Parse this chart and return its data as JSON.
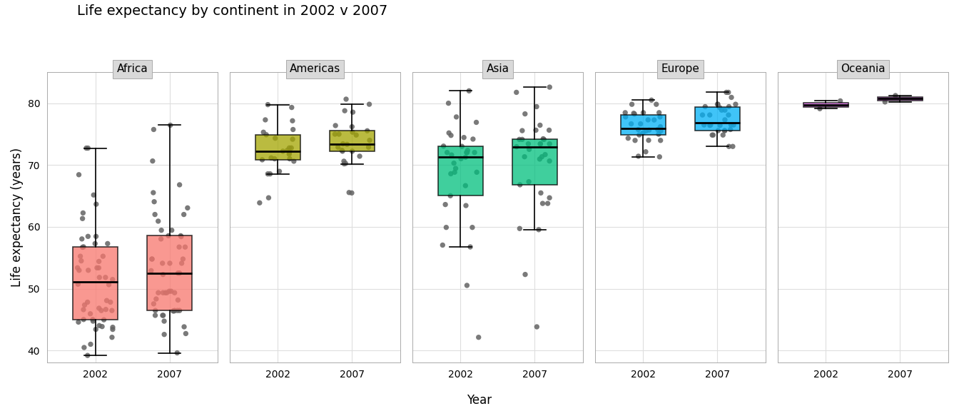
{
  "title": "Life expectancy by continent in 2002 v 2007",
  "xlabel": "Year",
  "ylabel": "Life expectancy (years)",
  "continents": [
    "Africa",
    "Americas",
    "Asia",
    "Europe",
    "Oceania"
  ],
  "years": [
    2002,
    2007
  ],
  "colors": {
    "Africa": "#F8766D",
    "Americas": "#A3A500",
    "Asia": "#00BF7D",
    "Europe": "#00B0F6",
    "Oceania": "#E76BF3"
  },
  "figure_background": "#FFFFFF",
  "panel_background": "#FFFFFF",
  "strip_background": "#D9D9D9",
  "grid_color": "#DEDEDE",
  "jitter_color": "#636363",
  "data": {
    "Africa": {
      "2002": [
        41.003,
        42.129,
        44.966,
        54.406,
        61.34,
        56.696,
        68.435,
        50.651,
        46.832,
        55.24,
        53.373,
        43.753,
        57.286,
        47.36,
        46.608,
        56.761,
        72.737,
        63.665,
        45.009,
        47.813,
        51.818,
        58.041,
        39.193,
        45.936,
        65.152,
        46.634,
        40.477,
        43.413,
        53.365,
        44.593,
        44.026,
        62.247,
        52.97,
        46.462,
        51.479,
        48.072,
        58.453,
        55.24,
        43.869,
        44.741,
        54.496,
        57.286,
        50.725,
        47.813,
        72.737,
        46.462,
        52.97,
        58.453,
        53.365,
        45.009,
        43.413,
        51.818
      ],
      "2007": [
        42.731,
        43.828,
        46.388,
        56.728,
        64.062,
        60.916,
        70.65,
        52.295,
        49.339,
        58.04,
        54.11,
        44.741,
        59.448,
        49.58,
        48.328,
        58.556,
        75.748,
        63.062,
        46.462,
        49.339,
        52.906,
        58.42,
        39.613,
        48.159,
        66.803,
        47.545,
        42.592,
        45.678,
        54.791,
        46.388,
        45.678,
        65.528,
        54.11,
        49.339,
        52.517,
        49.339,
        61.999,
        58.556,
        46.462,
        46.462,
        56.735,
        59.448,
        52.517,
        49.58,
        76.442,
        49.339,
        54.791,
        61.999,
        54.791,
        46.462,
        45.678,
        54.11
      ]
    },
    "Americas": {
      "2002": [
        75.744,
        64.7,
        71.006,
        72.39,
        79.77,
        70.847,
        68.565,
        77.31,
        70.616,
        72.047,
        72.235,
        79.313,
        71.752,
        74.902,
        77.158,
        68.978,
        72.766,
        74.173,
        71.15,
        75.307,
        68.564,
        74.34,
        71.006,
        72.766,
        63.883
      ],
      "2007": [
        75.32,
        65.554,
        72.39,
        72.889,
        80.653,
        72.889,
        70.259,
        78.553,
        71.421,
        73.338,
        74.002,
        79.829,
        73.422,
        76.195,
        78.782,
        70.198,
        74.994,
        74.852,
        72.235,
        76.384,
        70.616,
        75.537,
        72.235,
        74.994,
        65.483
      ]
    },
    "Asia": {
      "2002": [
        42.129,
        74.795,
        50.525,
        56.752,
        68.588,
        82.0,
        69.451,
        66.662,
        71.263,
        73.017,
        63.61,
        74.193,
        70.303,
        75.19,
        73.053,
        74.452,
        72.028,
        57.046,
        71.028,
        65.033,
        63.441,
        80.0,
        72.37,
        77.778,
        68.835,
        72.028,
        68.835,
        59.908,
        76.904,
        72.028,
        71.626,
        72.028,
        59.908
      ],
      "2007": [
        43.828,
        75.635,
        52.295,
        59.723,
        70.65,
        82.603,
        70.964,
        67.297,
        72.535,
        74.241,
        64.698,
        75.64,
        71.688,
        76.442,
        74.143,
        75.563,
        73.422,
        59.545,
        72.961,
        66.803,
        65.483,
        81.757,
        74.143,
        79.441,
        71.338,
        73.422,
        71.338,
        63.785,
        78.273,
        73.422,
        74.143,
        73.422,
        63.785
      ]
    },
    "Europe": {
      "2002": [
        75.651,
        72.14,
        74.34,
        75.744,
        78.256,
        78.37,
        75.516,
        74.876,
        75.744,
        77.31,
        77.29,
        78.471,
        75.516,
        75.19,
        79.82,
        80.5,
        73.981,
        77.783,
        74.002,
        76.66,
        71.322,
        77.783,
        74.994,
        71.421,
        78.471,
        78.471,
        76.66,
        73.981,
        76.195,
        79.82
      ],
      "2007": [
        76.423,
        74.852,
        75.748,
        76.486,
        79.441,
        79.313,
        76.486,
        75.563,
        76.423,
        78.098,
        78.885,
        79.829,
        76.486,
        75.563,
        80.941,
        81.757,
        75.563,
        78.885,
        74.852,
        78.098,
        73.005,
        79.441,
        76.486,
        73.005,
        79.829,
        79.829,
        78.098,
        74.852,
        77.31,
        81.757
      ]
    },
    "Oceania": {
      "2002": [
        80.37,
        79.11
      ],
      "2007": [
        81.235,
        80.204
      ]
    }
  },
  "ylim": [
    38,
    85
  ],
  "yticks": [
    40,
    50,
    60,
    70,
    80
  ],
  "box_width": 0.6,
  "jitter_alpha": 0.85,
  "jitter_size": 28
}
